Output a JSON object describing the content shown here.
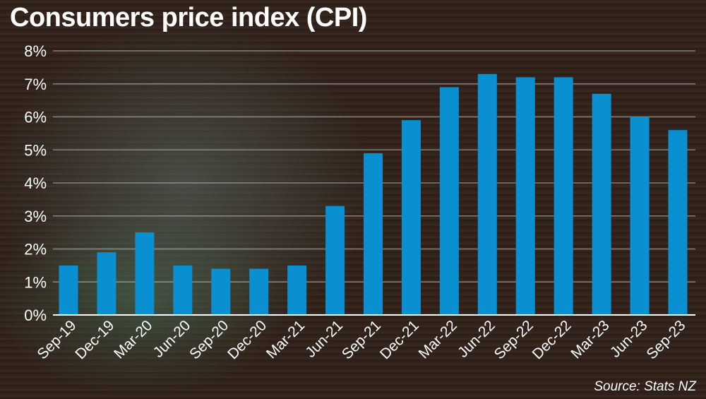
{
  "chart_data": {
    "type": "bar",
    "title": "Consumers price index (CPI)",
    "source": "Source: Stats NZ",
    "categories": [
      "Sep-19",
      "Dec-19",
      "Mar-20",
      "Jun-20",
      "Sep-20",
      "Dec-20",
      "Mar-21",
      "Jun-21",
      "Sep-21",
      "Dec-21",
      "Mar-22",
      "Jun-22",
      "Sep-22",
      "Dec-22",
      "Mar-23",
      "Jun-23",
      "Sep-23"
    ],
    "values": [
      1.5,
      1.9,
      2.5,
      1.5,
      1.4,
      1.4,
      1.5,
      3.3,
      4.9,
      5.9,
      6.9,
      7.3,
      7.2,
      7.2,
      6.7,
      6.0,
      5.6
    ],
    "ylim": [
      0,
      8
    ],
    "yticks": [
      "0%",
      "1%",
      "2%",
      "3%",
      "4%",
      "5%",
      "6%",
      "7%",
      "8%"
    ],
    "xlabel": "",
    "ylabel": "",
    "grid": true,
    "bar_color": "#0a8fd0"
  }
}
